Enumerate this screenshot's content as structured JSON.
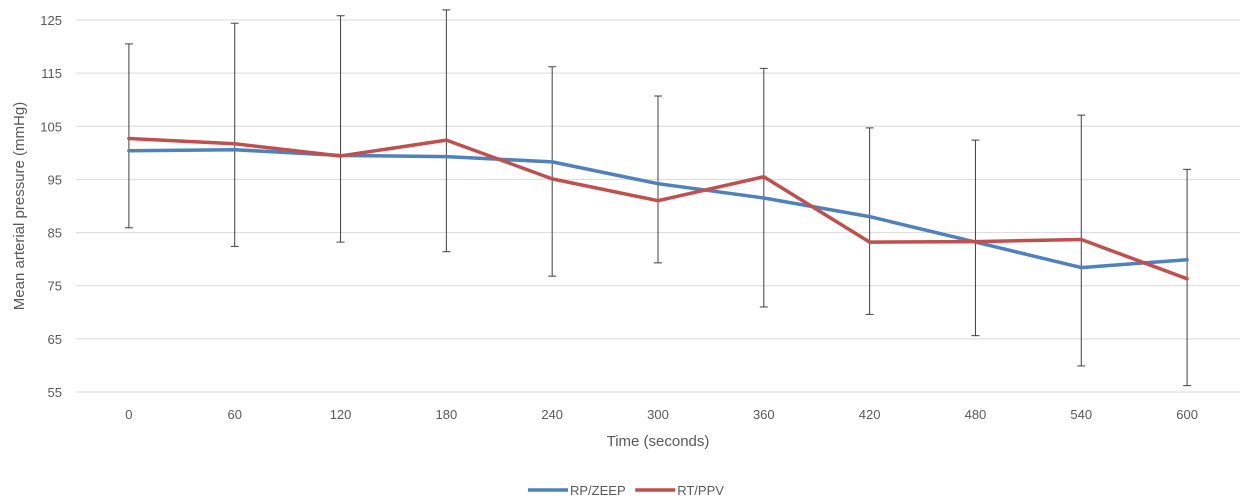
{
  "chart_data": {
    "type": "line",
    "title": "",
    "xlabel": "Time (seconds)",
    "ylabel": "Mean arterial pressure (mmHg)",
    "categories": [
      "0",
      "60",
      "120",
      "180",
      "240",
      "300",
      "360",
      "420",
      "480",
      "540",
      "600"
    ],
    "yticks": [
      "55",
      "65",
      "75",
      "85",
      "95",
      "105",
      "115",
      "125"
    ],
    "ylim": [
      55,
      125
    ],
    "grid": true,
    "legend_position": "bottom",
    "series": [
      {
        "name": "RP/ZEEP",
        "color": "#4f81bd",
        "values": [
          100.4,
          100.6,
          99.5,
          99.3,
          98.3,
          94.2,
          91.5,
          88.0,
          83.2,
          78.4,
          79.9
        ]
      },
      {
        "name": "RT/PPV",
        "color": "#c0504d",
        "values": [
          102.7,
          101.7,
          99.4,
          102.4,
          95.1,
          91.0,
          95.5,
          83.2,
          83.3,
          83.7,
          76.3
        ]
      }
    ],
    "error_bars": {
      "color": "#404040",
      "upper": [
        120.5,
        124.4,
        125.8,
        126.9,
        116.2,
        110.7,
        115.9,
        104.7,
        102.4,
        107.1,
        96.9
      ],
      "lower": [
        85.9,
        82.4,
        83.2,
        81.4,
        76.8,
        79.3,
        71.0,
        69.6,
        65.6,
        59.9,
        56.2
      ]
    }
  }
}
